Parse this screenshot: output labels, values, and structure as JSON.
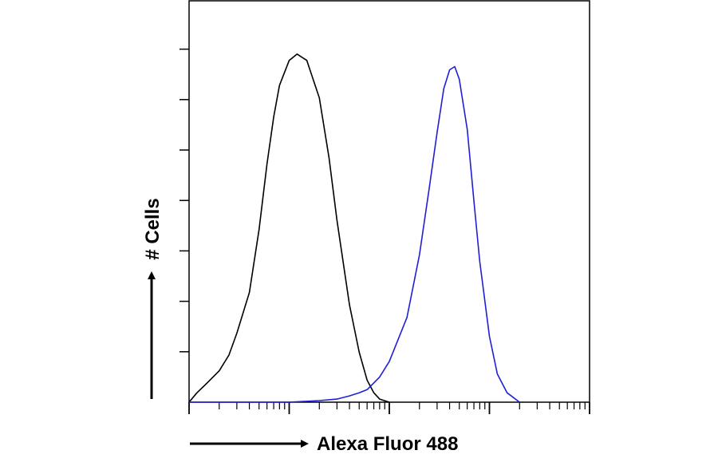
{
  "chart_data": {
    "type": "line",
    "title": "",
    "xlabel": "Alexa Fluor 488",
    "ylabel": "# Cells",
    "x_scale": "log",
    "xlim": [
      1,
      10000
    ],
    "ylim": [
      0,
      128
    ],
    "grid": false,
    "legend": "none",
    "series": [
      {
        "color": "#000000",
        "x": [
          1,
          1.2,
          1.5,
          2,
          2.5,
          3,
          4,
          5,
          6,
          7,
          8,
          10,
          12,
          15,
          20,
          25,
          30,
          40,
          50,
          60,
          70,
          80,
          100
        ],
        "y": [
          0,
          3,
          6,
          10,
          15,
          22,
          35,
          55,
          76,
          91,
          101,
          109,
          111,
          109,
          97,
          78,
          58,
          31,
          16,
          7,
          3,
          1,
          0
        ]
      },
      {
        "color": "#1f1fd6",
        "x": [
          1,
          10,
          20,
          30,
          40,
          50,
          60,
          80,
          100,
          150,
          200,
          250,
          300,
          350,
          400,
          450,
          500,
          600,
          700,
          800,
          1000,
          1200,
          1500,
          2000
        ],
        "y": [
          0,
          0,
          0.5,
          1,
          2,
          3,
          4,
          8,
          13,
          27,
          47,
          68,
          86,
          100,
          106,
          107,
          103,
          87,
          64,
          45,
          21,
          9,
          3,
          0
        ]
      }
    ]
  }
}
